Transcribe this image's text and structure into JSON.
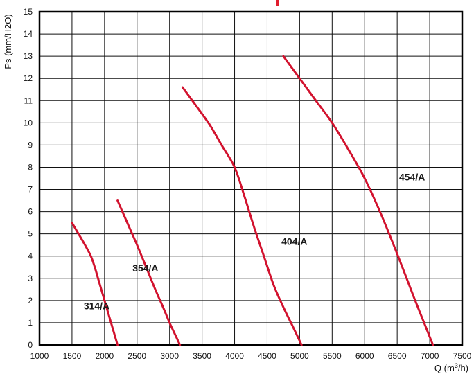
{
  "chart_data": {
    "type": "line",
    "title": "",
    "xlabel": "Q (m",
    "xlabel_sup": "3",
    "xlabel_suffix": "/h)",
    "ylabel": "Ps (mm/H2O)",
    "xlim": [
      1000,
      7500
    ],
    "ylim": [
      0,
      15
    ],
    "xticks": [
      1000,
      1500,
      2000,
      2500,
      3000,
      3500,
      4000,
      4500,
      5000,
      5500,
      6000,
      6500,
      7000,
      7500
    ],
    "yticks": [
      0,
      1,
      2,
      3,
      4,
      5,
      6,
      7,
      8,
      9,
      10,
      11,
      12,
      13,
      14,
      15
    ],
    "grid": true,
    "line_color": "#d2122e",
    "series": [
      {
        "name": "314/A",
        "x": [
          1500,
          1600,
          1700,
          1790,
          1850,
          1900,
          1950,
          2000,
          2050,
          2100,
          2150,
          2200
        ],
        "y": [
          5.5,
          5.0,
          4.5,
          4.0,
          3.5,
          3.0,
          2.5,
          2.0,
          1.5,
          1.0,
          0.5,
          0.0
        ]
      },
      {
        "name": "354/A",
        "x": [
          2200,
          2350,
          2500,
          2640,
          2780,
          2900,
          3000,
          3080,
          3160
        ],
        "y": [
          6.5,
          5.5,
          4.5,
          3.5,
          2.5,
          1.7,
          1.0,
          0.5,
          0.0
        ]
      },
      {
        "name": "404/A",
        "x": [
          3200,
          3400,
          3620,
          3800,
          4000,
          4150,
          4300,
          4450,
          4600,
          4750,
          4900,
          5030
        ],
        "y": [
          11.6,
          10.8,
          9.9,
          9.0,
          8.0,
          6.7,
          5.3,
          4.0,
          2.7,
          1.7,
          0.8,
          0.0
        ]
      },
      {
        "name": "454/A",
        "x": [
          4750,
          5000,
          5250,
          5500,
          5750,
          6000,
          6250,
          6500,
          6750,
          6900,
          7050
        ],
        "y": [
          13.0,
          12.0,
          11.0,
          10.0,
          8.8,
          7.5,
          5.9,
          4.1,
          2.2,
          1.1,
          0.0
        ]
      }
    ]
  }
}
